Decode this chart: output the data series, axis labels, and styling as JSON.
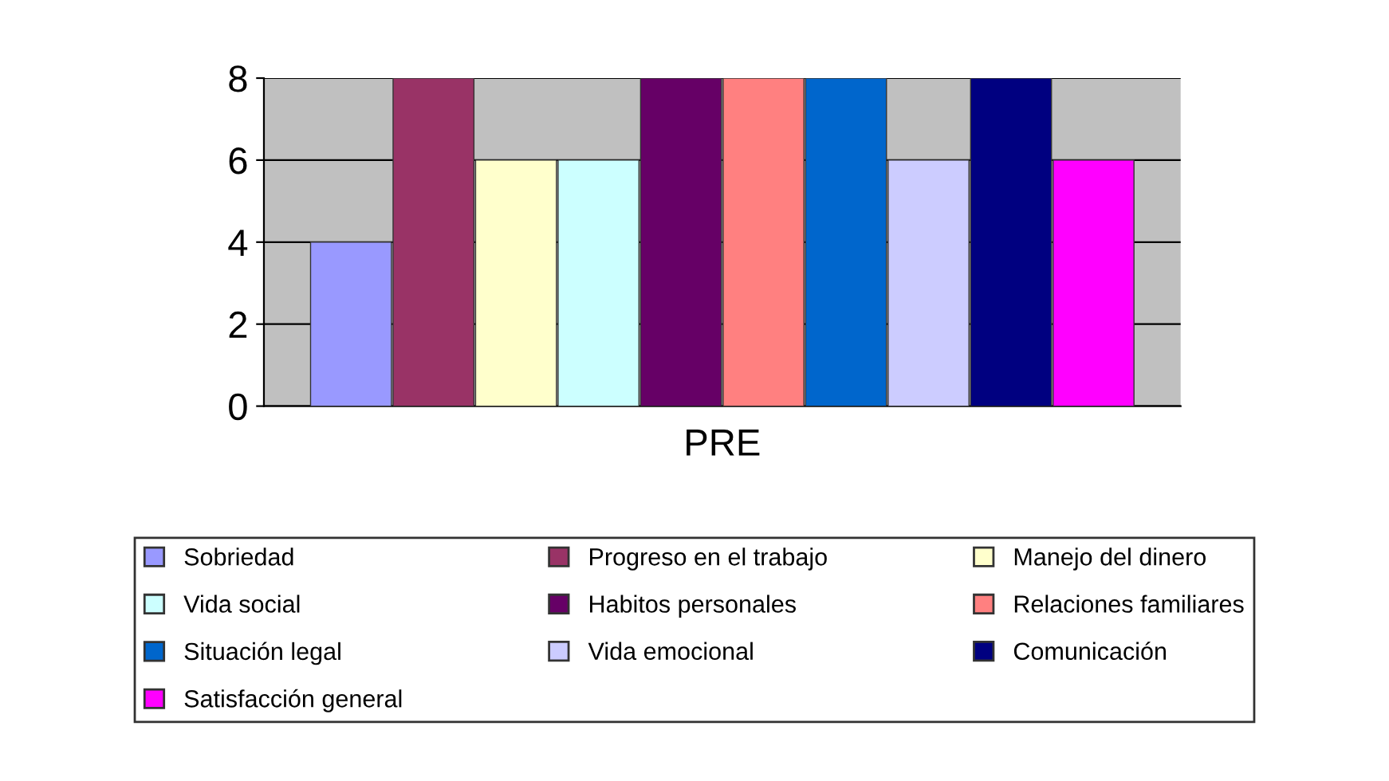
{
  "chart_data": {
    "type": "bar",
    "categories": [
      "PRE"
    ],
    "series": [
      {
        "name": "Sobriedad",
        "color": "#9999ff",
        "values": [
          4
        ]
      },
      {
        "name": "Progreso en el trabajo",
        "color": "#993366",
        "values": [
          8
        ]
      },
      {
        "name": "Manejo del dinero",
        "color": "#ffffcc",
        "values": [
          6
        ]
      },
      {
        "name": "Vida social",
        "color": "#ccffff",
        "values": [
          6
        ]
      },
      {
        "name": "Habitos personales",
        "color": "#660066",
        "values": [
          8
        ]
      },
      {
        "name": "Relaciones familiares",
        "color": "#ff8080",
        "values": [
          8
        ]
      },
      {
        "name": "Situación legal",
        "color": "#0066cc",
        "values": [
          8
        ]
      },
      {
        "name": "Vida emocional",
        "color": "#ccccff",
        "values": [
          6
        ]
      },
      {
        "name": "Comunicación",
        "color": "#000080",
        "values": [
          8
        ]
      },
      {
        "name": "Satisfacción general",
        "color": "#ff00ff",
        "values": [
          6
        ]
      }
    ],
    "ylim": [
      0,
      8
    ],
    "yticks": [
      0,
      2,
      4,
      6,
      8
    ],
    "grid": "y",
    "legend": "bottom"
  }
}
